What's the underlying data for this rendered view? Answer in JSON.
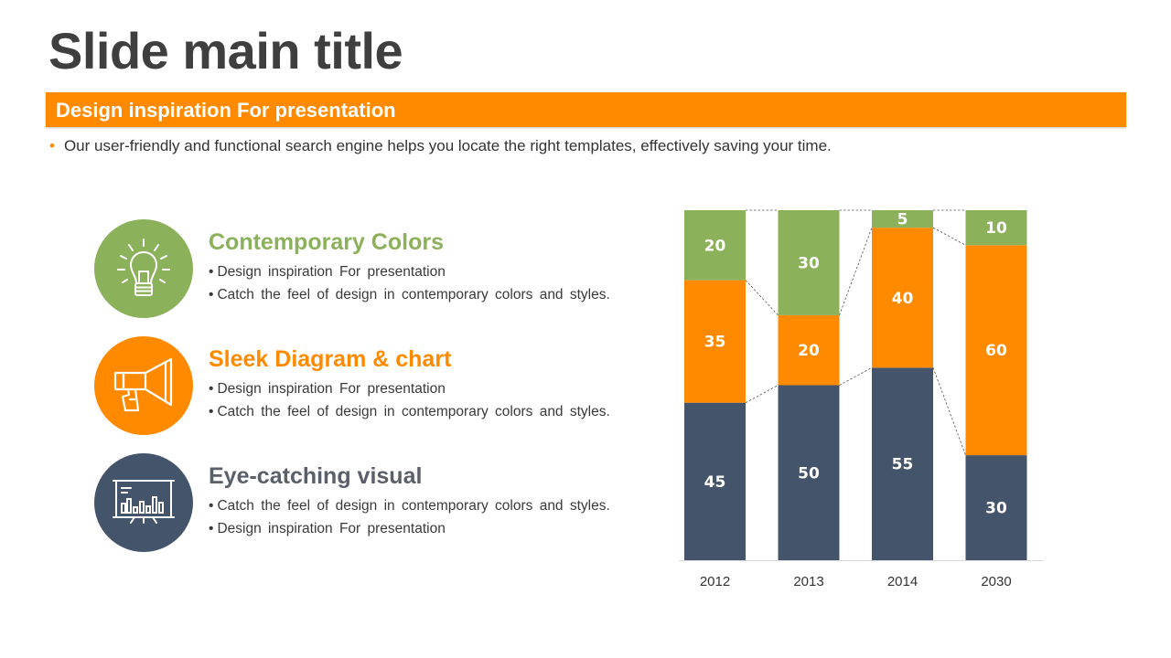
{
  "title": "Slide main title",
  "banner": "Design inspiration For presentation",
  "intro": "Our user-friendly and functional search engine helps you locate the right templates, effectively saving your time.",
  "features": [
    {
      "title": "Contemporary Colors",
      "color": "#8cb15b",
      "icon": "lightbulb-icon",
      "lines": [
        "Design inspiration  For presentation",
        "Catch the feel of design in contemporary  colors and styles."
      ]
    },
    {
      "title": "Sleek Diagram & chart",
      "color": "#ff8a00",
      "icon": "megaphone-icon",
      "lines": [
        "Design inspiration  For presentation",
        "Catch the feel of design in contemporary  colors and styles."
      ]
    },
    {
      "title": "Eye-catching visual",
      "color": "#44546a",
      "icon": "presentation-board-icon",
      "lines": [
        "Catch the feel of design in contemporary  colors and styles.",
        "Design inspiration  For presentation"
      ]
    }
  ],
  "colors": {
    "green": "#8cb15b",
    "orange": "#ff8a00",
    "slate": "#44546a"
  },
  "chart_data": {
    "type": "bar",
    "stacked": true,
    "percent_stacked": true,
    "categories": [
      "2012",
      "2013",
      "2014",
      "2030"
    ],
    "series": [
      {
        "color": "#44546a",
        "values": [
          45,
          50,
          55,
          30
        ]
      },
      {
        "color": "#ff8a00",
        "values": [
          35,
          20,
          40,
          60
        ]
      },
      {
        "color": "#8cb15b",
        "values": [
          20,
          30,
          5,
          10
        ]
      }
    ],
    "series_lines": "dashed",
    "legend": "none",
    "grid": false
  }
}
